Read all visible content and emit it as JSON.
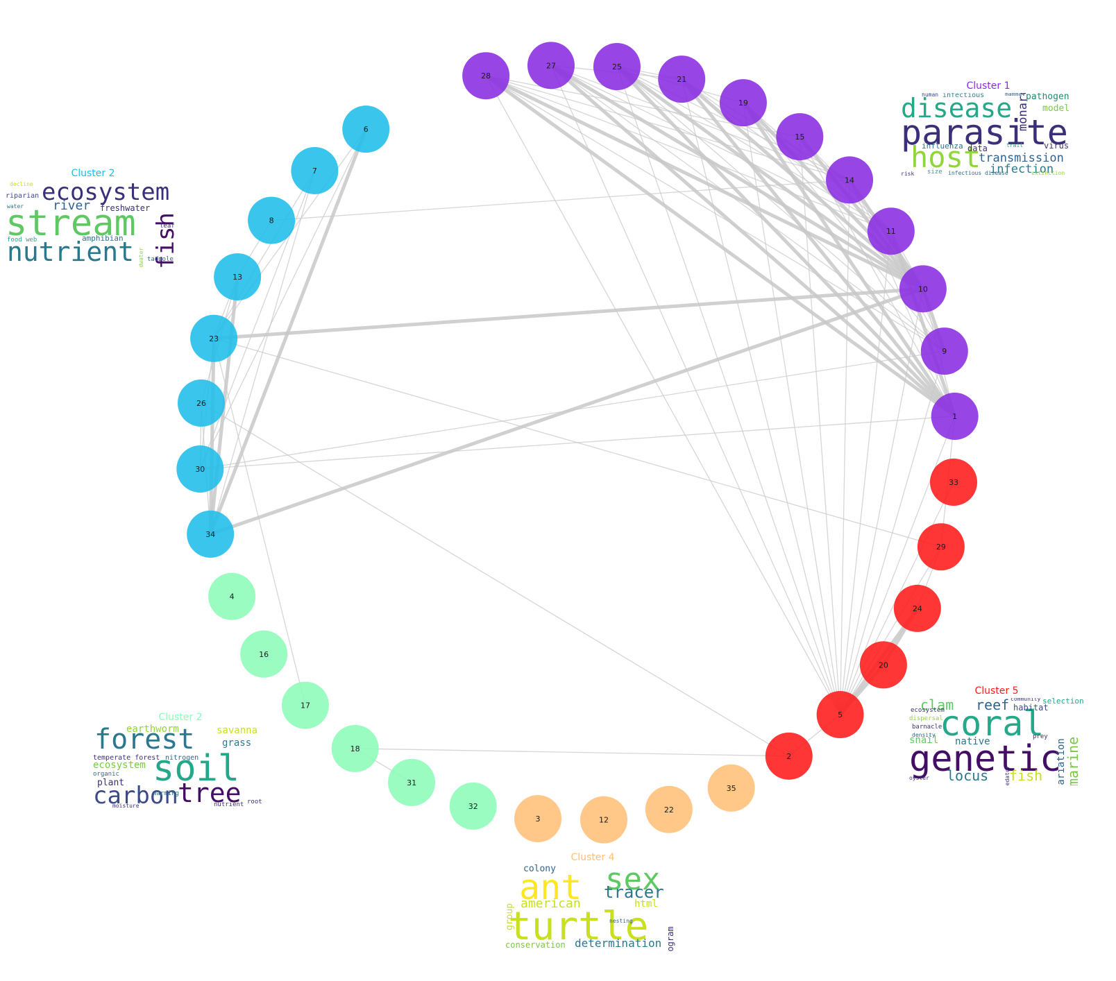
{
  "colors": {
    "cluster1": "#8a2be2",
    "cluster2_blue": "#1ebde9",
    "cluster2_green": "#8dfcb9",
    "cluster4": "#ffbf78",
    "cluster5": "#ff1a1a",
    "edge": "#c8c8c8"
  },
  "nodes": [
    {
      "id": "28",
      "cluster": "cluster1"
    },
    {
      "id": "27",
      "cluster": "cluster1"
    },
    {
      "id": "25",
      "cluster": "cluster1"
    },
    {
      "id": "21",
      "cluster": "cluster1"
    },
    {
      "id": "19",
      "cluster": "cluster1"
    },
    {
      "id": "15",
      "cluster": "cluster1"
    },
    {
      "id": "14",
      "cluster": "cluster1"
    },
    {
      "id": "11",
      "cluster": "cluster1"
    },
    {
      "id": "10",
      "cluster": "cluster1"
    },
    {
      "id": "9",
      "cluster": "cluster1"
    },
    {
      "id": "1",
      "cluster": "cluster1"
    },
    {
      "id": "33",
      "cluster": "cluster5"
    },
    {
      "id": "29",
      "cluster": "cluster5"
    },
    {
      "id": "24",
      "cluster": "cluster5"
    },
    {
      "id": "20",
      "cluster": "cluster5"
    },
    {
      "id": "5",
      "cluster": "cluster5"
    },
    {
      "id": "2",
      "cluster": "cluster5"
    },
    {
      "id": "35",
      "cluster": "cluster4"
    },
    {
      "id": "22",
      "cluster": "cluster4"
    },
    {
      "id": "12",
      "cluster": "cluster4"
    },
    {
      "id": "3",
      "cluster": "cluster4"
    },
    {
      "id": "32",
      "cluster": "cluster2_green"
    },
    {
      "id": "31",
      "cluster": "cluster2_green"
    },
    {
      "id": "18",
      "cluster": "cluster2_green"
    },
    {
      "id": "17",
      "cluster": "cluster2_green"
    },
    {
      "id": "16",
      "cluster": "cluster2_green"
    },
    {
      "id": "4",
      "cluster": "cluster2_green"
    },
    {
      "id": "34",
      "cluster": "cluster2_blue"
    },
    {
      "id": "30",
      "cluster": "cluster2_blue"
    },
    {
      "id": "26",
      "cluster": "cluster2_blue"
    },
    {
      "id": "23",
      "cluster": "cluster2_blue"
    },
    {
      "id": "13",
      "cluster": "cluster2_blue"
    },
    {
      "id": "8",
      "cluster": "cluster2_blue"
    },
    {
      "id": "7",
      "cluster": "cluster2_blue"
    },
    {
      "id": "6",
      "cluster": "cluster2_blue"
    }
  ],
  "edges": [
    [
      "28",
      "1"
    ],
    [
      "28",
      "10"
    ],
    [
      "28",
      "9"
    ],
    [
      "28",
      "11"
    ],
    [
      "28",
      "14"
    ],
    [
      "28",
      "5"
    ],
    [
      "28",
      "15"
    ],
    [
      "27",
      "1"
    ],
    [
      "27",
      "10"
    ],
    [
      "27",
      "9"
    ],
    [
      "27",
      "11"
    ],
    [
      "27",
      "5"
    ],
    [
      "27",
      "14"
    ],
    [
      "27",
      "21"
    ],
    [
      "25",
      "1"
    ],
    [
      "25",
      "10"
    ],
    [
      "25",
      "9"
    ],
    [
      "25",
      "11"
    ],
    [
      "25",
      "14"
    ],
    [
      "25",
      "5"
    ],
    [
      "25",
      "21"
    ],
    [
      "25",
      "19"
    ],
    [
      "21",
      "1"
    ],
    [
      "21",
      "10"
    ],
    [
      "21",
      "11"
    ],
    [
      "21",
      "5"
    ],
    [
      "21",
      "14"
    ],
    [
      "19",
      "1"
    ],
    [
      "19",
      "10"
    ],
    [
      "19",
      "9"
    ],
    [
      "19",
      "5"
    ],
    [
      "19",
      "11"
    ],
    [
      "15",
      "1"
    ],
    [
      "15",
      "10"
    ],
    [
      "15",
      "5"
    ],
    [
      "15",
      "11"
    ],
    [
      "14",
      "1"
    ],
    [
      "14",
      "10"
    ],
    [
      "14",
      "9"
    ],
    [
      "14",
      "5"
    ],
    [
      "11",
      "1"
    ],
    [
      "11",
      "10"
    ],
    [
      "11",
      "5"
    ],
    [
      "11",
      "9"
    ],
    [
      "10",
      "1"
    ],
    [
      "10",
      "9"
    ],
    [
      "10",
      "5"
    ],
    [
      "10",
      "34"
    ],
    [
      "10",
      "23"
    ],
    [
      "9",
      "30"
    ],
    [
      "9",
      "5"
    ],
    [
      "1",
      "30"
    ],
    [
      "1",
      "29"
    ],
    [
      "1",
      "5"
    ],
    [
      "5",
      "2"
    ],
    [
      "5",
      "20"
    ],
    [
      "5",
      "24"
    ],
    [
      "5",
      "29"
    ],
    [
      "5",
      "33"
    ],
    [
      "20",
      "24"
    ],
    [
      "24",
      "29"
    ],
    [
      "23",
      "29"
    ],
    [
      "26",
      "2"
    ],
    [
      "18",
      "2"
    ],
    [
      "18",
      "31"
    ],
    [
      "6",
      "34"
    ],
    [
      "6",
      "30"
    ],
    [
      "7",
      "34"
    ],
    [
      "7",
      "30"
    ],
    [
      "6",
      "23"
    ],
    [
      "7",
      "23"
    ],
    [
      "13",
      "23"
    ],
    [
      "13",
      "34"
    ],
    [
      "23",
      "34"
    ],
    [
      "23",
      "30"
    ],
    [
      "26",
      "34"
    ],
    [
      "26",
      "30"
    ],
    [
      "13",
      "26"
    ],
    [
      "8",
      "13"
    ],
    [
      "8",
      "14"
    ],
    [
      "23",
      "17"
    ]
  ],
  "heavy_edges": [
    [
      "28",
      "1"
    ],
    [
      "28",
      "10"
    ],
    [
      "27",
      "10"
    ],
    [
      "27",
      "1"
    ],
    [
      "25",
      "10"
    ],
    [
      "25",
      "1"
    ],
    [
      "21",
      "10"
    ],
    [
      "21",
      "1"
    ],
    [
      "19",
      "1"
    ],
    [
      "19",
      "10"
    ],
    [
      "15",
      "10"
    ],
    [
      "14",
      "10"
    ],
    [
      "11",
      "1"
    ],
    [
      "10",
      "9"
    ],
    [
      "9",
      "1"
    ],
    [
      "10",
      "34"
    ],
    [
      "10",
      "23"
    ],
    [
      "6",
      "34"
    ],
    [
      "13",
      "34"
    ],
    [
      "23",
      "34"
    ],
    [
      "5",
      "20"
    ],
    [
      "5",
      "24"
    ],
    [
      "20",
      "24"
    ]
  ],
  "clusters": [
    {
      "key": "c1",
      "title": "Cluster 1",
      "color": "#8a2be2",
      "words": [
        {
          "t": "parasite",
          "s": 50,
          "c": "#3b2f7a"
        },
        {
          "t": "disease",
          "s": 38,
          "c": "#25a88a"
        },
        {
          "t": "host",
          "s": 42,
          "c": "#8fd63a"
        },
        {
          "t": "transmission",
          "s": 17,
          "c": "#31638c"
        },
        {
          "t": "infection",
          "s": 17,
          "c": "#2a7a8e"
        },
        {
          "t": "monarch",
          "s": 17,
          "c": "#3b2f7a"
        },
        {
          "t": "pathogen",
          "s": 13,
          "c": "#238a6f"
        },
        {
          "t": "model",
          "s": 13,
          "c": "#7ac943"
        },
        {
          "t": "virus",
          "s": 12,
          "c": "#45327a"
        },
        {
          "t": "data",
          "s": 12,
          "c": "#3b2f7a"
        },
        {
          "t": "influenza",
          "s": 11,
          "c": "#2e6e8e"
        },
        {
          "t": "infectious",
          "s": 10,
          "c": "#25858e"
        },
        {
          "t": "mammal",
          "s": 8,
          "c": "#2e5f8a"
        },
        {
          "t": "human",
          "s": 8,
          "c": "#3b4a8a"
        },
        {
          "t": "size",
          "s": 9,
          "c": "#3e9d8e"
        },
        {
          "t": "infectious disease",
          "s": 8,
          "c": "#2e6e8e"
        },
        {
          "t": "extinction",
          "s": 8,
          "c": "#8fd63a"
        },
        {
          "t": "risk",
          "s": 8,
          "c": "#3b2f7a"
        },
        {
          "t": "trait",
          "s": 8,
          "c": "#25a88a"
        }
      ]
    },
    {
      "key": "c2a",
      "title": "Cluster 2",
      "color": "#1ebde9",
      "words": [
        {
          "t": "stream",
          "s": 52,
          "c": "#5ec962"
        },
        {
          "t": "ecosystem",
          "s": 34,
          "c": "#3b2f7a"
        },
        {
          "t": "nutrient",
          "s": 38,
          "c": "#2a788e"
        },
        {
          "t": "fish",
          "s": 34,
          "c": "#440d66"
        },
        {
          "t": "river",
          "s": 18,
          "c": "#31638c"
        },
        {
          "t": "freshwater",
          "s": 12,
          "c": "#3b2f7a"
        },
        {
          "t": "amphibian",
          "s": 11,
          "c": "#2e6e8e"
        },
        {
          "t": "riparian",
          "s": 10,
          "c": "#3b4a8a"
        },
        {
          "t": "food web",
          "s": 9,
          "c": "#25a88a"
        },
        {
          "t": "tadpole",
          "s": 9,
          "c": "#31638c"
        },
        {
          "t": "headwater",
          "s": 8,
          "c": "#8fd63a"
        },
        {
          "t": "leaf",
          "s": 9,
          "c": "#3b2f7a"
        },
        {
          "t": "decline",
          "s": 8,
          "c": "#c8e020"
        },
        {
          "t": "water",
          "s": 8,
          "c": "#2a788e"
        }
      ]
    },
    {
      "key": "c2b",
      "title": "Cluster 2",
      "color": "#8dfcb9",
      "words": [
        {
          "t": "soil",
          "s": 52,
          "c": "#25a88a"
        },
        {
          "t": "forest",
          "s": 40,
          "c": "#2a788e"
        },
        {
          "t": "tree",
          "s": 38,
          "c": "#440d66"
        },
        {
          "t": "carbon",
          "s": 34,
          "c": "#3b4a8a"
        },
        {
          "t": "earthworm",
          "s": 14,
          "c": "#8fd63a"
        },
        {
          "t": "savanna",
          "s": 14,
          "c": "#c8e020"
        },
        {
          "t": "grass",
          "s": 14,
          "c": "#2a788e"
        },
        {
          "t": "ecosystem",
          "s": 14,
          "c": "#7ac943"
        },
        {
          "t": "plant",
          "s": 13,
          "c": "#3b2f7a"
        },
        {
          "t": "temperate forest",
          "s": 10,
          "c": "#3b2f7a"
        },
        {
          "t": "nitrogen",
          "s": 10,
          "c": "#31638c"
        },
        {
          "t": "organic",
          "s": 9,
          "c": "#2e6e8e"
        },
        {
          "t": "warming",
          "s": 9,
          "c": "#2e6e8e"
        },
        {
          "t": "nutrient",
          "s": 9,
          "c": "#3b2f7a"
        },
        {
          "t": "moisture",
          "s": 8,
          "c": "#3b2f7a"
        },
        {
          "t": "root",
          "s": 9,
          "c": "#3b2f7a"
        }
      ]
    },
    {
      "key": "c4",
      "title": "Cluster 4",
      "color": "#ffbf78",
      "words": [
        {
          "t": "turtle",
          "s": 56,
          "c": "#c8e020"
        },
        {
          "t": "ant",
          "s": 50,
          "c": "#fde725"
        },
        {
          "t": "sex",
          "s": 44,
          "c": "#5ec962"
        },
        {
          "t": "tracer",
          "s": 24,
          "c": "#2a788e"
        },
        {
          "t": "american",
          "s": 18,
          "c": "#c8e020"
        },
        {
          "t": "html",
          "s": 14,
          "c": "#c8e020"
        },
        {
          "t": "determination",
          "s": 16,
          "c": "#2a788e"
        },
        {
          "t": "conservation",
          "s": 12,
          "c": "#7ac943"
        },
        {
          "t": "colony",
          "s": 13,
          "c": "#31638c"
        },
        {
          "t": "group",
          "s": 13,
          "c": "#c8e020"
        },
        {
          "t": "program",
          "s": 12,
          "c": "#3b2f7a"
        },
        {
          "t": "nesting",
          "s": 8,
          "c": "#31638c"
        }
      ]
    },
    {
      "key": "c5",
      "title": "Cluster 5",
      "color": "#ff1a1a",
      "words": [
        {
          "t": "coral",
          "s": 50,
          "c": "#25a88a"
        },
        {
          "t": "genetic",
          "s": 52,
          "c": "#440d66"
        },
        {
          "t": "clam",
          "s": 20,
          "c": "#5ec962"
        },
        {
          "t": "reef",
          "s": 20,
          "c": "#31638c"
        },
        {
          "t": "locus",
          "s": 20,
          "c": "#2a788e"
        },
        {
          "t": "fish",
          "s": 20,
          "c": "#c8e020"
        },
        {
          "t": "marine",
          "s": 20,
          "c": "#7ac943"
        },
        {
          "t": "native",
          "s": 14,
          "c": "#2a788e"
        },
        {
          "t": "snail",
          "s": 14,
          "c": "#5ec962"
        },
        {
          "t": "habitat",
          "s": 12,
          "c": "#3b4a8a"
        },
        {
          "t": "selection",
          "s": 11,
          "c": "#25a88a"
        },
        {
          "t": "ecosystem",
          "s": 9,
          "c": "#3b2f7a"
        },
        {
          "t": "barnacle",
          "s": 9,
          "c": "#3b2f7a"
        },
        {
          "t": "dispersal",
          "s": 9,
          "c": "#8fd63a"
        },
        {
          "t": "density",
          "s": 8,
          "c": "#31638c"
        },
        {
          "t": "prey",
          "s": 9,
          "c": "#3b2f7a"
        },
        {
          "t": "variation",
          "s": 14,
          "c": "#31638c"
        },
        {
          "t": "oyster",
          "s": 8,
          "c": "#3b2f7a"
        },
        {
          "t": "predator",
          "s": 8,
          "c": "#3b2f7a"
        },
        {
          "t": "community",
          "s": 8,
          "c": "#3b2f7a"
        }
      ]
    }
  ]
}
